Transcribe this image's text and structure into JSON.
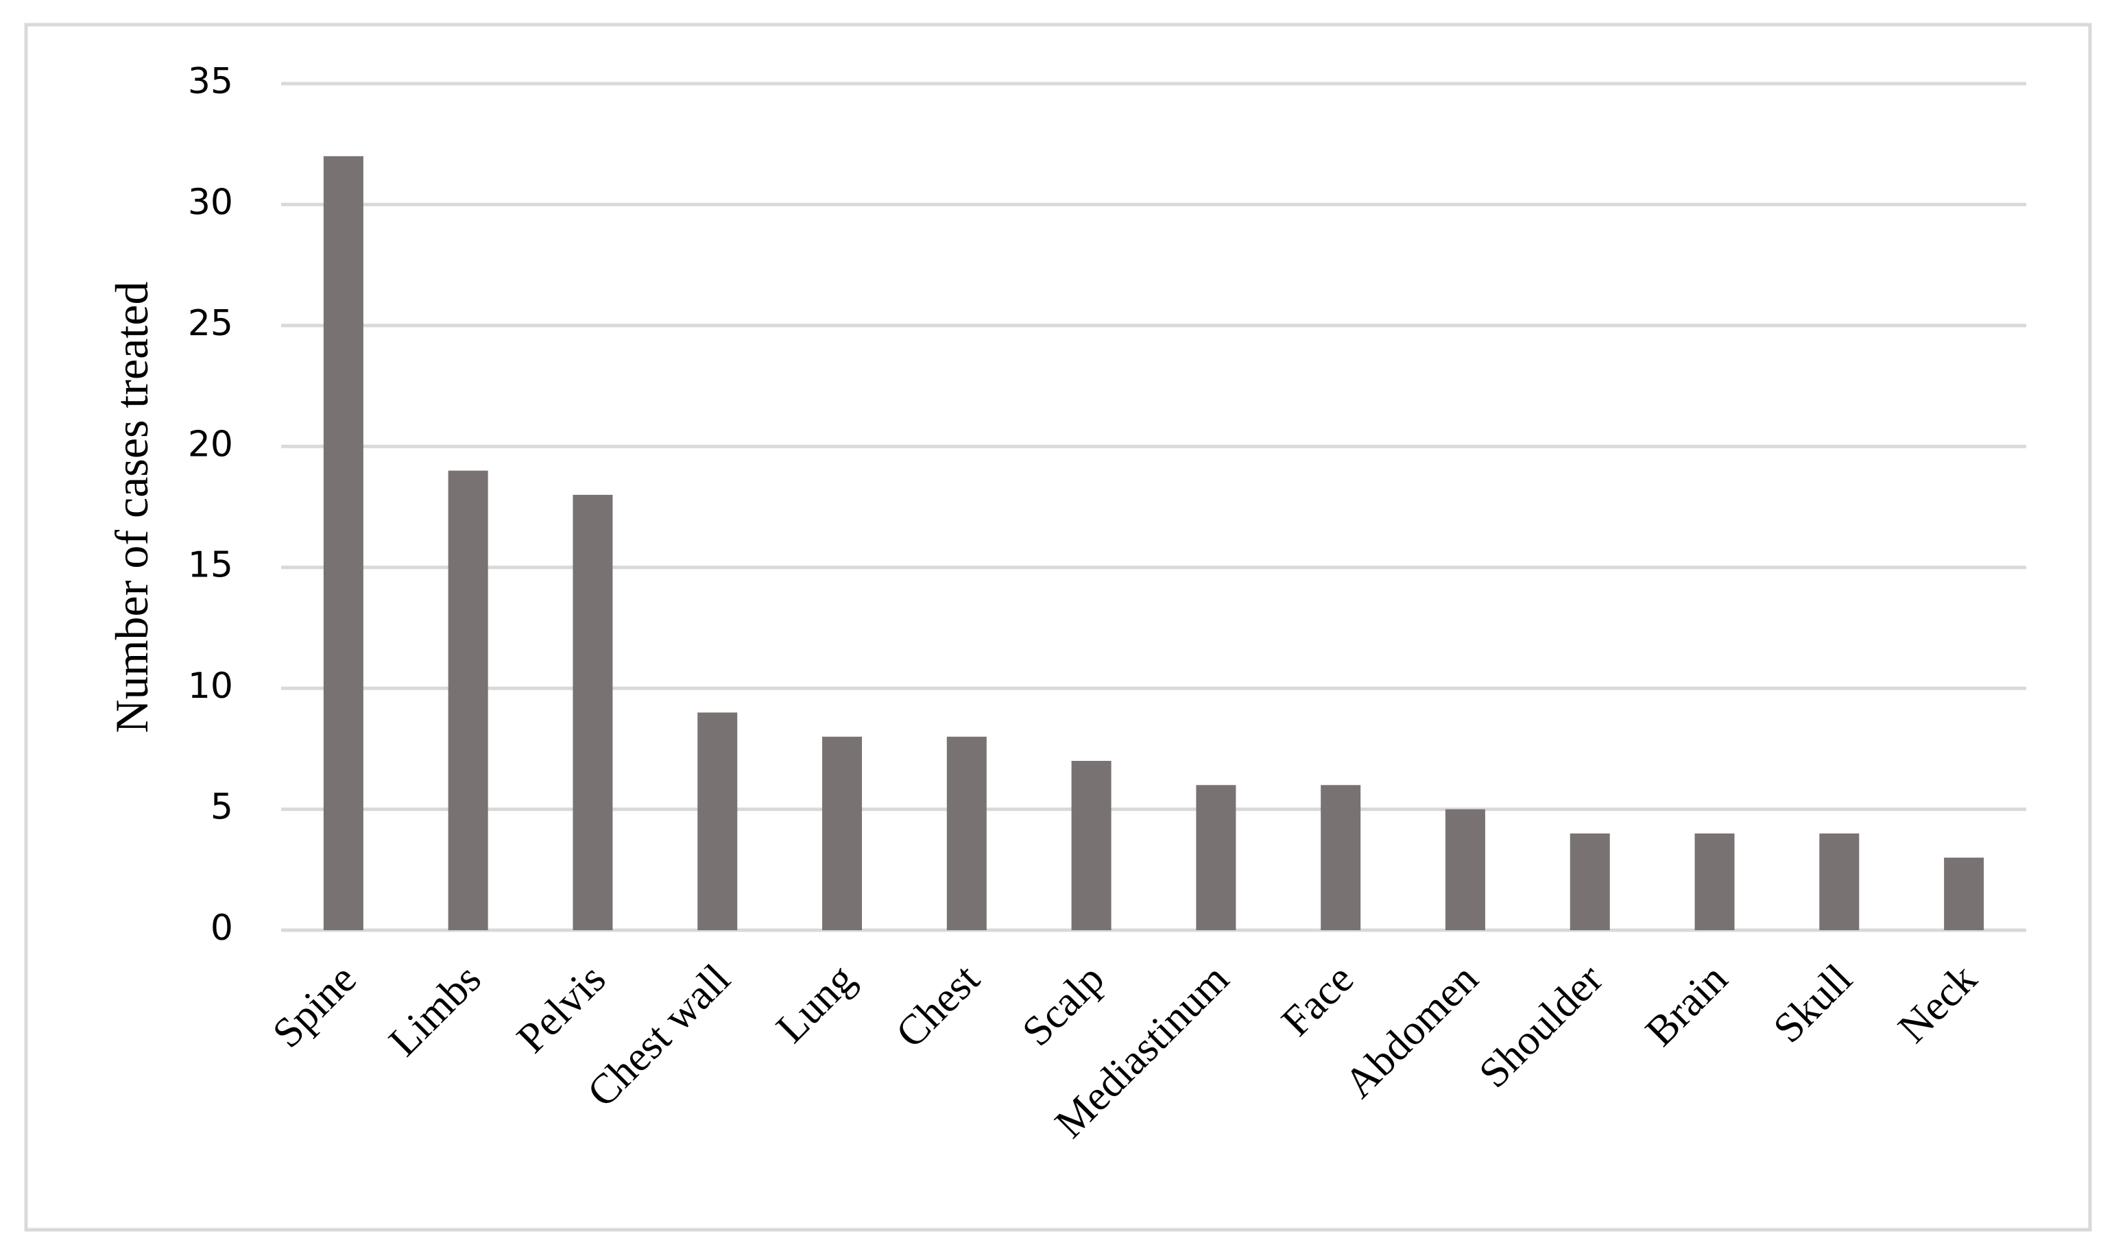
{
  "chart_data": {
    "type": "bar",
    "y_label": "Number of cases treated",
    "categories": [
      "Spine",
      "Limbs",
      "Pelvis",
      "Chest wall",
      "Lung",
      "Chest",
      "Scalp",
      "Mediastinum",
      "Face",
      "Abdomen",
      "Shoulder",
      "Brain",
      "Skull",
      "Neck"
    ],
    "values": [
      32,
      19,
      18,
      9,
      8,
      8,
      7,
      6,
      6,
      5,
      4,
      4,
      4,
      3
    ],
    "color": "#787372",
    "ylim": [
      0,
      35
    ],
    "yticks": [
      0,
      5,
      10,
      15,
      20,
      25,
      30,
      35
    ],
    "grid": true
  }
}
